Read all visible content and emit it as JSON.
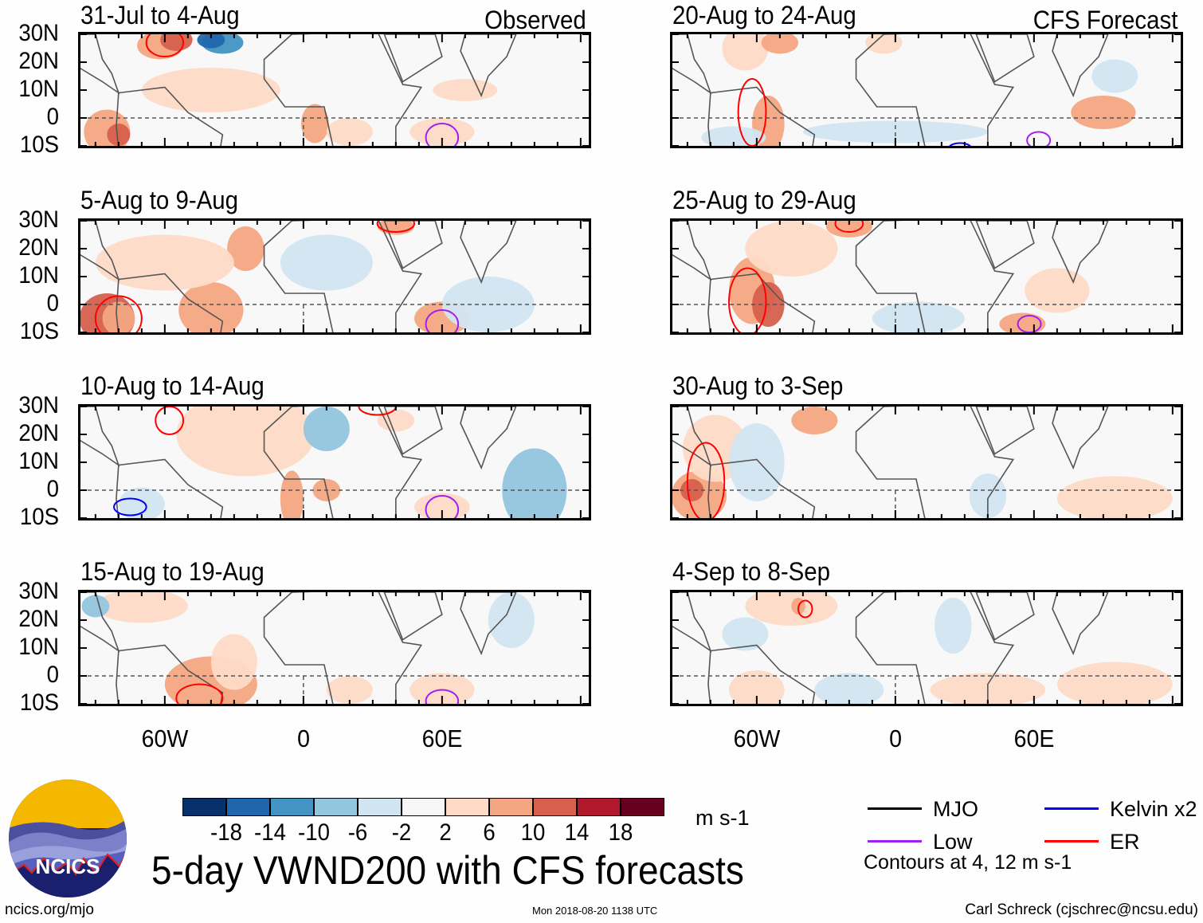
{
  "chart_data": {
    "type": "heatmap",
    "title": "5-day VWND200 with CFS forecasts",
    "variable": "200-hPa meridional wind anomaly",
    "units": "m s-1",
    "column_labels": [
      "Observed",
      "CFS Forecast"
    ],
    "y_ticks": [
      "30N",
      "20N",
      "10N",
      "0",
      "10S"
    ],
    "x_ticks": [
      "60W",
      "0",
      "60E"
    ],
    "ylim": [
      "10S",
      "30N"
    ],
    "xlim": [
      "~100W",
      "~120E"
    ],
    "colorbar": {
      "levels": [
        -18,
        -14,
        -10,
        -6,
        -2,
        2,
        6,
        10,
        14,
        18
      ],
      "colors": [
        "#08306b",
        "#2166ac",
        "#4393c3",
        "#92c5de",
        "#d1e5f0",
        "#f7f7f7",
        "#fddbc7",
        "#f4a582",
        "#d6604d",
        "#b2182b",
        "#67001f"
      ]
    },
    "legend": [
      {
        "label": "MJO",
        "color": "#000000"
      },
      {
        "label": "Kelvin x2",
        "color": "#0000ff"
      },
      {
        "label": "Low",
        "color": "#a020f0"
      },
      {
        "label": "ER",
        "color": "#ff0000"
      }
    ],
    "contour_note": "Contours at 4, 12 m s-1",
    "panels": [
      {
        "period": "31-Jul to 4-Aug",
        "column": "Observed"
      },
      {
        "period": "5-Aug to 9-Aug",
        "column": "Observed"
      },
      {
        "period": "10-Aug to 14-Aug",
        "column": "Observed"
      },
      {
        "period": "15-Aug to 19-Aug",
        "column": "Observed"
      },
      {
        "period": "20-Aug to 24-Aug",
        "column": "CFS Forecast"
      },
      {
        "period": "25-Aug to 29-Aug",
        "column": "CFS Forecast"
      },
      {
        "period": "30-Aug to 3-Sep",
        "column": "CFS Forecast"
      },
      {
        "period": "4-Sep to 8-Sep",
        "column": "CFS Forecast"
      }
    ]
  },
  "labels": {
    "observed": "Observed",
    "forecast": "CFS Forecast",
    "units": "m s-1",
    "main_title": "5-day VWND200 with CFS forecasts",
    "contour_note": "Contours at 4, 12 m s-1",
    "logo_text": "NCICS",
    "website": "ncics.org/mjo",
    "timestamp": "Mon 2018-08-20 1138 UTC",
    "credit": "Carl Schreck (cjschrec@ncsu.edu)"
  }
}
